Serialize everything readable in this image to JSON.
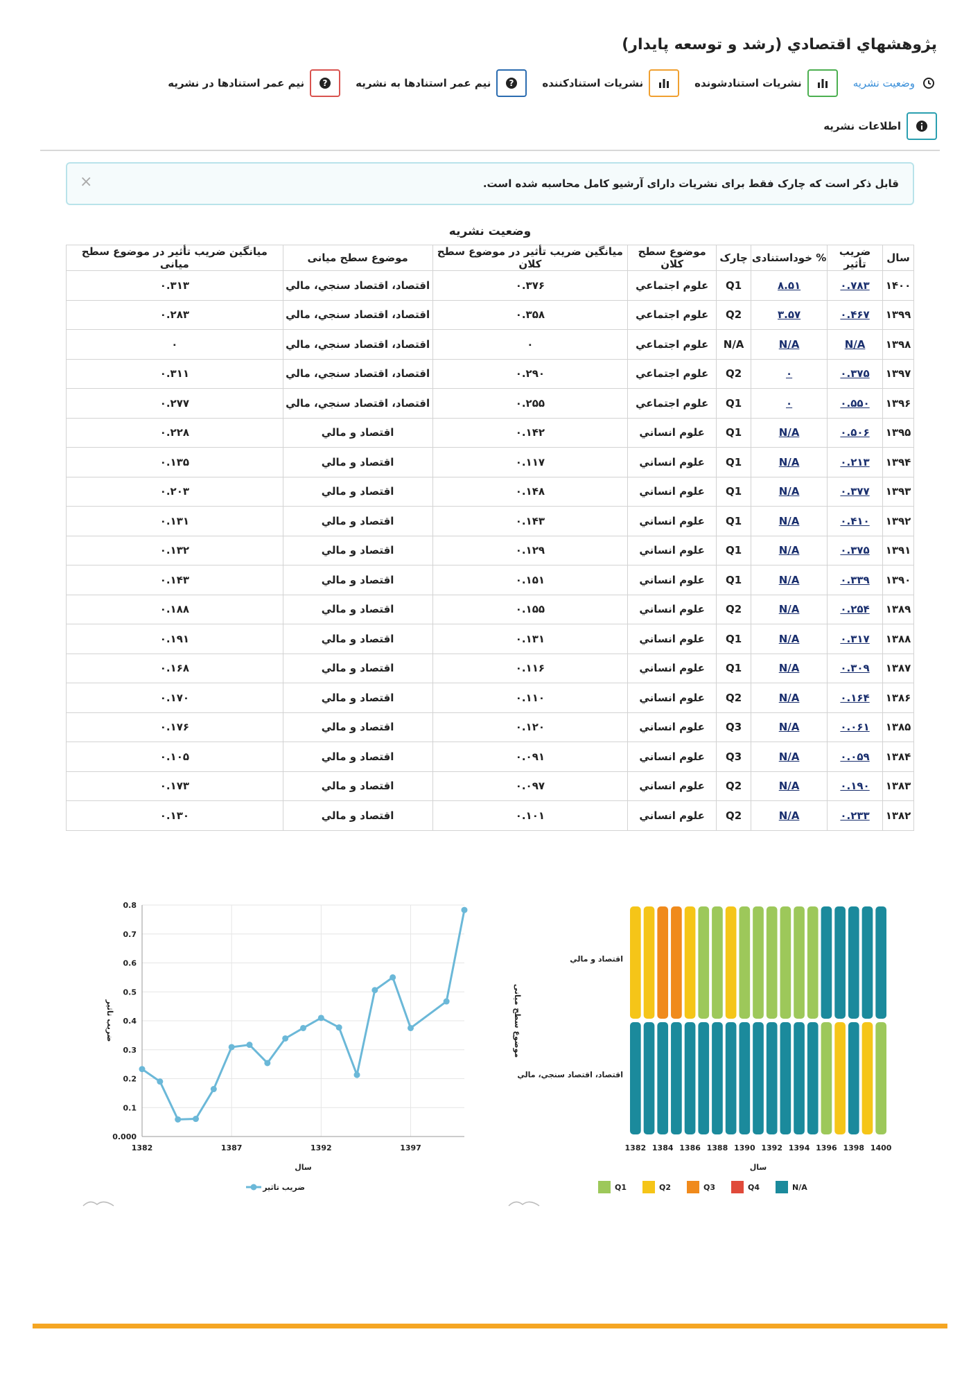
{
  "title": "پژوهشهاي اقتصادي (رشد و توسعه پايدار)",
  "tabs": [
    {
      "label": "وضعیت نشریه",
      "icon": "clock-icon",
      "active": true
    },
    {
      "label": "نشریات استنادشونده",
      "icon": "bar-chart-icon"
    },
    {
      "label": "نشریات استنادکننده",
      "icon": "bar-chart-icon"
    },
    {
      "label": "نیم عمر استنادها به نشریه",
      "icon": "question-icon"
    },
    {
      "label": "نیم عمر استنادها در نشریه",
      "icon": "question-icon"
    }
  ],
  "info_tab": {
    "label": "اطلاعات نشریه",
    "icon": "info-icon"
  },
  "alert": {
    "text": "قابل ذکر است که چارک فقط برای نشریات دارای آرشیو کامل محاسبه شده است.",
    "close": "×"
  },
  "table": {
    "caption": "وضعیت نشریه",
    "headers": [
      "سال",
      "ضریب تأثیر",
      "% خوداستنادی",
      "چارک",
      "موضوع سطح کلان",
      "میانگین ضریب تأثیر در موضوع سطح کلان",
      "موضوع سطح میانی",
      "میانگین ضریب تأثیر در موضوع سطح میانی"
    ],
    "rows": [
      [
        "۱۴۰۰",
        "۰.۷۸۳",
        "۸.۵۱",
        "Q1",
        "علوم اجتماعي",
        "۰.۳۷۶",
        "اقتصاد، اقتصاد سنجي، مالي",
        "۰.۳۱۳"
      ],
      [
        "۱۳۹۹",
        "۰.۴۶۷",
        "۳.۵۷",
        "Q2",
        "علوم اجتماعي",
        "۰.۳۵۸",
        "اقتصاد، اقتصاد سنجي، مالي",
        "۰.۲۸۳"
      ],
      [
        "۱۳۹۸",
        "N/A",
        "N/A",
        "N/A",
        "علوم اجتماعي",
        "۰",
        "اقتصاد، اقتصاد سنجي، مالي",
        "۰"
      ],
      [
        "۱۳۹۷",
        "۰.۳۷۵",
        "۰",
        "Q2",
        "علوم اجتماعي",
        "۰.۲۹۰",
        "اقتصاد، اقتصاد سنجي، مالي",
        "۰.۳۱۱"
      ],
      [
        "۱۳۹۶",
        "۰.۵۵۰",
        "۰",
        "Q1",
        "علوم اجتماعي",
        "۰.۲۵۵",
        "اقتصاد، اقتصاد سنجي، مالي",
        "۰.۲۷۷"
      ],
      [
        "۱۳۹۵",
        "۰.۵۰۶",
        "N/A",
        "Q1",
        "علوم انساني",
        "۰.۱۴۲",
        "اقتصاد و مالي",
        "۰.۲۲۸"
      ],
      [
        "۱۳۹۴",
        "۰.۲۱۳",
        "N/A",
        "Q1",
        "علوم انساني",
        "۰.۱۱۷",
        "اقتصاد و مالي",
        "۰.۱۳۵"
      ],
      [
        "۱۳۹۳",
        "۰.۳۷۷",
        "N/A",
        "Q1",
        "علوم انساني",
        "۰.۱۴۸",
        "اقتصاد و مالي",
        "۰.۲۰۳"
      ],
      [
        "۱۳۹۲",
        "۰.۴۱۰",
        "N/A",
        "Q1",
        "علوم انساني",
        "۰.۱۴۳",
        "اقتصاد و مالي",
        "۰.۱۳۱"
      ],
      [
        "۱۳۹۱",
        "۰.۳۷۵",
        "N/A",
        "Q1",
        "علوم انساني",
        "۰.۱۲۹",
        "اقتصاد و مالي",
        "۰.۱۳۲"
      ],
      [
        "۱۳۹۰",
        "۰.۳۳۹",
        "N/A",
        "Q1",
        "علوم انساني",
        "۰.۱۵۱",
        "اقتصاد و مالي",
        "۰.۱۴۳"
      ],
      [
        "۱۳۸۹",
        "۰.۲۵۴",
        "N/A",
        "Q2",
        "علوم انساني",
        "۰.۱۵۵",
        "اقتصاد و مالي",
        "۰.۱۸۸"
      ],
      [
        "۱۳۸۸",
        "۰.۳۱۷",
        "N/A",
        "Q1",
        "علوم انساني",
        "۰.۱۳۱",
        "اقتصاد و مالي",
        "۰.۱۹۱"
      ],
      [
        "۱۳۸۷",
        "۰.۳۰۹",
        "N/A",
        "Q1",
        "علوم انساني",
        "۰.۱۱۶",
        "اقتصاد و مالي",
        "۰.۱۶۸"
      ],
      [
        "۱۳۸۶",
        "۰.۱۶۴",
        "N/A",
        "Q2",
        "علوم انساني",
        "۰.۱۱۰",
        "اقتصاد و مالي",
        "۰.۱۷۰"
      ],
      [
        "۱۳۸۵",
        "۰.۰۶۱",
        "N/A",
        "Q3",
        "علوم انساني",
        "۰.۱۲۰",
        "اقتصاد و مالي",
        "۰.۱۷۶"
      ],
      [
        "۱۳۸۴",
        "۰.۰۵۹",
        "N/A",
        "Q3",
        "علوم انساني",
        "۰.۰۹۱",
        "اقتصاد و مالي",
        "۰.۱۰۵"
      ],
      [
        "۱۳۸۳",
        "۰.۱۹۰",
        "N/A",
        "Q2",
        "علوم انساني",
        "۰.۰۹۷",
        "اقتصاد و مالي",
        "۰.۱۷۳"
      ],
      [
        "۱۳۸۲",
        "۰.۲۳۳",
        "N/A",
        "Q2",
        "علوم انساني",
        "۰.۱۰۱",
        "اقتصاد و مالي",
        "۰.۱۳۰"
      ]
    ]
  },
  "chart_data": [
    {
      "type": "line",
      "xlabel": "سال",
      "ylabel": "ضریب تاثیر",
      "ylim": [
        0,
        0.8
      ],
      "yticks": [
        "0.000",
        "0.1",
        "0.2",
        "0.3",
        "0.4",
        "0.5",
        "0.6",
        "0.7",
        "0.8"
      ],
      "xticks": [
        "1382",
        "1387",
        "1392",
        "1397"
      ],
      "grid": true,
      "legend": "bottom",
      "color": "#6bb8d8",
      "series": [
        {
          "name": "ضریب تاثیر",
          "x": [
            1382,
            1383,
            1384,
            1385,
            1386,
            1387,
            1388,
            1389,
            1390,
            1391,
            1392,
            1393,
            1394,
            1395,
            1396,
            1397,
            1399,
            1400
          ],
          "values": [
            0.233,
            0.19,
            0.059,
            0.061,
            0.164,
            0.309,
            0.317,
            0.254,
            0.339,
            0.375,
            0.41,
            0.377,
            0.213,
            0.506,
            0.55,
            0.375,
            0.467,
            0.783
          ]
        }
      ]
    },
    {
      "type": "heatmap",
      "xlabel": "سال",
      "ylabel": "موضوع سطح میانی",
      "xticks": [
        "1382",
        "1384",
        "1386",
        "1388",
        "1390",
        "1392",
        "1394",
        "1396",
        "1398",
        "1400"
      ],
      "categories": [
        "اقتصاد و مالي",
        "اقتصاد، اقتصاد سنجي، مالي"
      ],
      "years": [
        1382,
        1383,
        1384,
        1385,
        1386,
        1387,
        1388,
        1389,
        1390,
        1391,
        1392,
        1393,
        1394,
        1395,
        1396,
        1397,
        1398,
        1399,
        1400
      ],
      "legend": [
        {
          "label": "Q1",
          "color": "#9dc85a"
        },
        {
          "label": "Q2",
          "color": "#f5c518"
        },
        {
          "label": "Q3",
          "color": "#f08a1c"
        },
        {
          "label": "Q4",
          "color": "#e04a3a"
        },
        {
          "label": "N/A",
          "color": "#1b8a9c"
        }
      ],
      "rows": [
        {
          "category": "اقتصاد و مالي",
          "values": [
            "Q2",
            "Q2",
            "Q3",
            "Q3",
            "Q2",
            "Q1",
            "Q1",
            "Q2",
            "Q1",
            "Q1",
            "Q1",
            "Q1",
            "Q1",
            "Q1",
            "N/A",
            "N/A",
            "N/A",
            "N/A",
            "N/A"
          ]
        },
        {
          "category": "اقتصاد، اقتصاد سنجي، مالي",
          "values": [
            "N/A",
            "N/A",
            "N/A",
            "N/A",
            "N/A",
            "N/A",
            "N/A",
            "N/A",
            "N/A",
            "N/A",
            "N/A",
            "N/A",
            "N/A",
            "N/A",
            "Q1",
            "Q2",
            "N/A",
            "Q2",
            "Q1"
          ]
        }
      ]
    }
  ]
}
